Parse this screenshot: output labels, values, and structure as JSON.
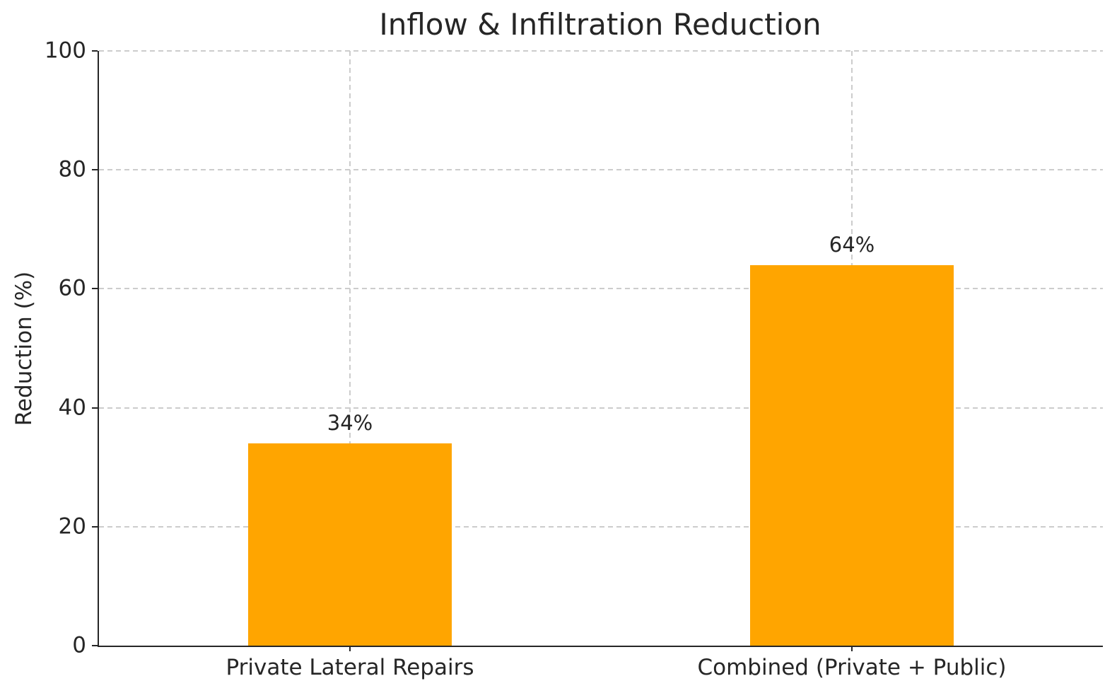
{
  "chart_data": {
    "type": "bar",
    "title": "Inflow & Infiltration Reduction",
    "xlabel": "",
    "ylabel": "Reduction (%)",
    "categories": [
      "Private Lateral Repairs",
      "Combined (Private + Public)"
    ],
    "values": [
      34,
      64
    ],
    "value_labels": [
      "34%",
      "64%"
    ],
    "ylim": [
      0,
      100
    ],
    "yticks": [
      0,
      20,
      40,
      60,
      80,
      100
    ],
    "grid": true,
    "grid_style": "dashed",
    "legend": "none",
    "bar_color": "#FFA500",
    "grid_color": "#cccccc",
    "text_color": "#262626",
    "spine_color": "#262626",
    "background_color": "#ffffff",
    "bar_width_fraction": 0.405
  }
}
